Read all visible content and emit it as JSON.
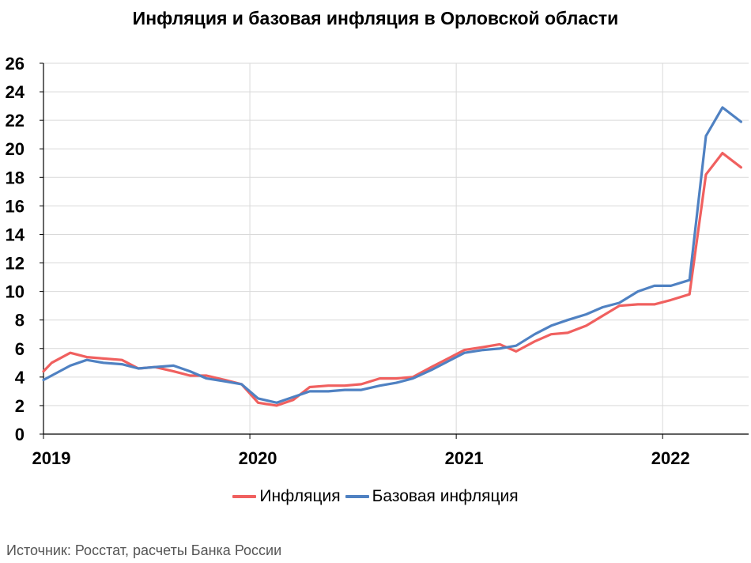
{
  "chart_data": {
    "type": "line",
    "title": "Инфляция и базовая инфляция в Орловской области",
    "source": "Источник: Росстат, расчеты Банка России",
    "ylim": [
      0,
      26
    ],
    "y_ticks": [
      0,
      2,
      4,
      6,
      8,
      10,
      12,
      14,
      16,
      18,
      20,
      22,
      24,
      26
    ],
    "xlim": [
      2019.0,
      2022.4167
    ],
    "x_ticks": [
      2019,
      2020,
      2021,
      2022
    ],
    "x_tick_labels": [
      "2019",
      "2020",
      "2021",
      "2022"
    ],
    "grid": true,
    "legend_position": "bottom",
    "series": [
      {
        "name": "Инфляция",
        "color": "#F0605F",
        "points": [
          [
            2019.0,
            4.4
          ],
          [
            2019.04,
            5.0
          ],
          [
            2019.13,
            5.7
          ],
          [
            2019.21,
            5.4
          ],
          [
            2019.29,
            5.3
          ],
          [
            2019.38,
            5.2
          ],
          [
            2019.46,
            4.6
          ],
          [
            2019.54,
            4.7
          ],
          [
            2019.63,
            4.4
          ],
          [
            2019.71,
            4.1
          ],
          [
            2019.79,
            4.1
          ],
          [
            2019.88,
            3.8
          ],
          [
            2019.96,
            3.5
          ],
          [
            2020.04,
            2.2
          ],
          [
            2020.13,
            2.0
          ],
          [
            2020.21,
            2.4
          ],
          [
            2020.29,
            3.3
          ],
          [
            2020.38,
            3.4
          ],
          [
            2020.46,
            3.4
          ],
          [
            2020.54,
            3.5
          ],
          [
            2020.63,
            3.9
          ],
          [
            2020.71,
            3.9
          ],
          [
            2020.79,
            4.0
          ],
          [
            2020.88,
            4.7
          ],
          [
            2020.96,
            5.3
          ],
          [
            2021.04,
            5.9
          ],
          [
            2021.13,
            6.1
          ],
          [
            2021.21,
            6.3
          ],
          [
            2021.29,
            5.8
          ],
          [
            2021.38,
            6.5
          ],
          [
            2021.46,
            7.0
          ],
          [
            2021.54,
            7.1
          ],
          [
            2021.63,
            7.6
          ],
          [
            2021.71,
            8.3
          ],
          [
            2021.79,
            9.0
          ],
          [
            2021.88,
            9.1
          ],
          [
            2021.96,
            9.1
          ],
          [
            2022.04,
            9.4
          ],
          [
            2022.13,
            9.8
          ],
          [
            2022.21,
            18.2
          ],
          [
            2022.29,
            19.7
          ],
          [
            2022.38,
            18.7
          ]
        ]
      },
      {
        "name": "Базовая инфляция",
        "color": "#4F81C2",
        "points": [
          [
            2019.0,
            3.8
          ],
          [
            2019.13,
            4.8
          ],
          [
            2019.21,
            5.2
          ],
          [
            2019.29,
            5.0
          ],
          [
            2019.38,
            4.9
          ],
          [
            2019.46,
            4.6
          ],
          [
            2019.54,
            4.7
          ],
          [
            2019.63,
            4.8
          ],
          [
            2019.71,
            4.4
          ],
          [
            2019.79,
            3.9
          ],
          [
            2019.88,
            3.7
          ],
          [
            2019.96,
            3.5
          ],
          [
            2020.04,
            2.5
          ],
          [
            2020.13,
            2.2
          ],
          [
            2020.21,
            2.6
          ],
          [
            2020.29,
            3.0
          ],
          [
            2020.38,
            3.0
          ],
          [
            2020.46,
            3.1
          ],
          [
            2020.54,
            3.1
          ],
          [
            2020.63,
            3.4
          ],
          [
            2020.71,
            3.6
          ],
          [
            2020.79,
            3.9
          ],
          [
            2020.88,
            4.5
          ],
          [
            2020.96,
            5.1
          ],
          [
            2021.04,
            5.7
          ],
          [
            2021.13,
            5.9
          ],
          [
            2021.21,
            6.0
          ],
          [
            2021.29,
            6.2
          ],
          [
            2021.38,
            7.0
          ],
          [
            2021.46,
            7.6
          ],
          [
            2021.54,
            8.0
          ],
          [
            2021.63,
            8.4
          ],
          [
            2021.71,
            8.9
          ],
          [
            2021.79,
            9.2
          ],
          [
            2021.88,
            10.0
          ],
          [
            2021.96,
            10.4
          ],
          [
            2022.04,
            10.4
          ],
          [
            2022.13,
            10.8
          ],
          [
            2022.21,
            20.9
          ],
          [
            2022.29,
            22.9
          ],
          [
            2022.38,
            21.9
          ]
        ]
      }
    ]
  }
}
